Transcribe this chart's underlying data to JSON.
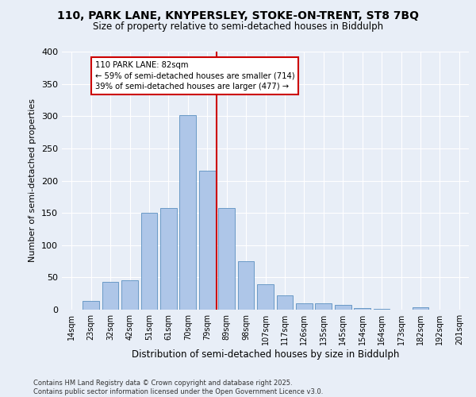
{
  "title_line1": "110, PARK LANE, KNYPERSLEY, STOKE-ON-TRENT, ST8 7BQ",
  "title_line2": "Size of property relative to semi-detached houses in Biddulph",
  "xlabel": "Distribution of semi-detached houses by size in Biddulph",
  "ylabel": "Number of semi-detached properties",
  "categories": [
    "14sqm",
    "23sqm",
    "32sqm",
    "42sqm",
    "51sqm",
    "61sqm",
    "70sqm",
    "79sqm",
    "89sqm",
    "98sqm",
    "107sqm",
    "117sqm",
    "126sqm",
    "135sqm",
    "145sqm",
    "154sqm",
    "164sqm",
    "173sqm",
    "182sqm",
    "192sqm",
    "201sqm"
  ],
  "values": [
    0,
    13,
    43,
    46,
    150,
    158,
    302,
    215,
    158,
    75,
    40,
    22,
    10,
    10,
    7,
    3,
    1,
    0,
    4,
    0,
    0
  ],
  "bar_color": "#aec6e8",
  "bar_edge_color": "#5a8fc0",
  "property_label": "110 PARK LANE: 82sqm",
  "pct_smaller": 59,
  "count_smaller": 714,
  "pct_larger": 39,
  "count_larger": 477,
  "vline_color": "#cc0000",
  "annotation_box_color": "#ffffff",
  "annotation_box_edge": "#cc0000",
  "ylim": [
    0,
    400
  ],
  "yticks": [
    0,
    50,
    100,
    150,
    200,
    250,
    300,
    350,
    400
  ],
  "bg_color": "#e8eef7",
  "grid_color": "#ffffff",
  "footer": "Contains HM Land Registry data © Crown copyright and database right 2025.\nContains public sector information licensed under the Open Government Licence v3.0."
}
